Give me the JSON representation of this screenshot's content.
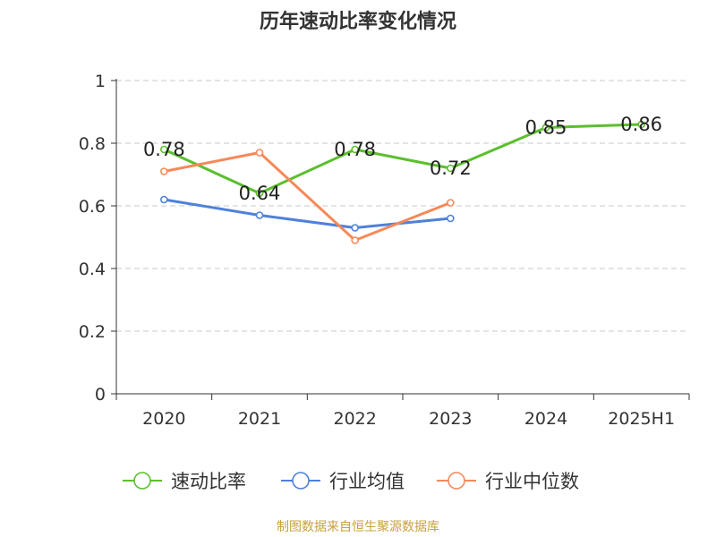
{
  "chart_data": {
    "type": "line",
    "title": "历年速动比率变化情况",
    "categories": [
      "2020",
      "2021",
      "2022",
      "2023",
      "2024",
      "2025H1"
    ],
    "ylim": [
      0,
      1
    ],
    "yticks": [
      "0",
      "0.2",
      "0.4",
      "0.6",
      "0.8",
      "1"
    ],
    "grid": true,
    "legend_position": "bottom",
    "series": [
      {
        "name": "速动比率",
        "color": "#5bbf2e",
        "values": [
          0.78,
          0.64,
          0.78,
          0.72,
          0.85,
          0.86
        ],
        "labels": [
          "0.78",
          "0.64",
          "0.78",
          "0.72",
          "0.85",
          "0.86"
        ]
      },
      {
        "name": "行业均值",
        "color": "#4f81db",
        "values": [
          0.62,
          0.57,
          0.53,
          0.56,
          null,
          null
        ]
      },
      {
        "name": "行业中位数",
        "color": "#f5895a",
        "values": [
          0.71,
          0.77,
          0.49,
          0.61,
          null,
          null
        ]
      }
    ]
  },
  "source": "制图数据来自恒生聚源数据库"
}
